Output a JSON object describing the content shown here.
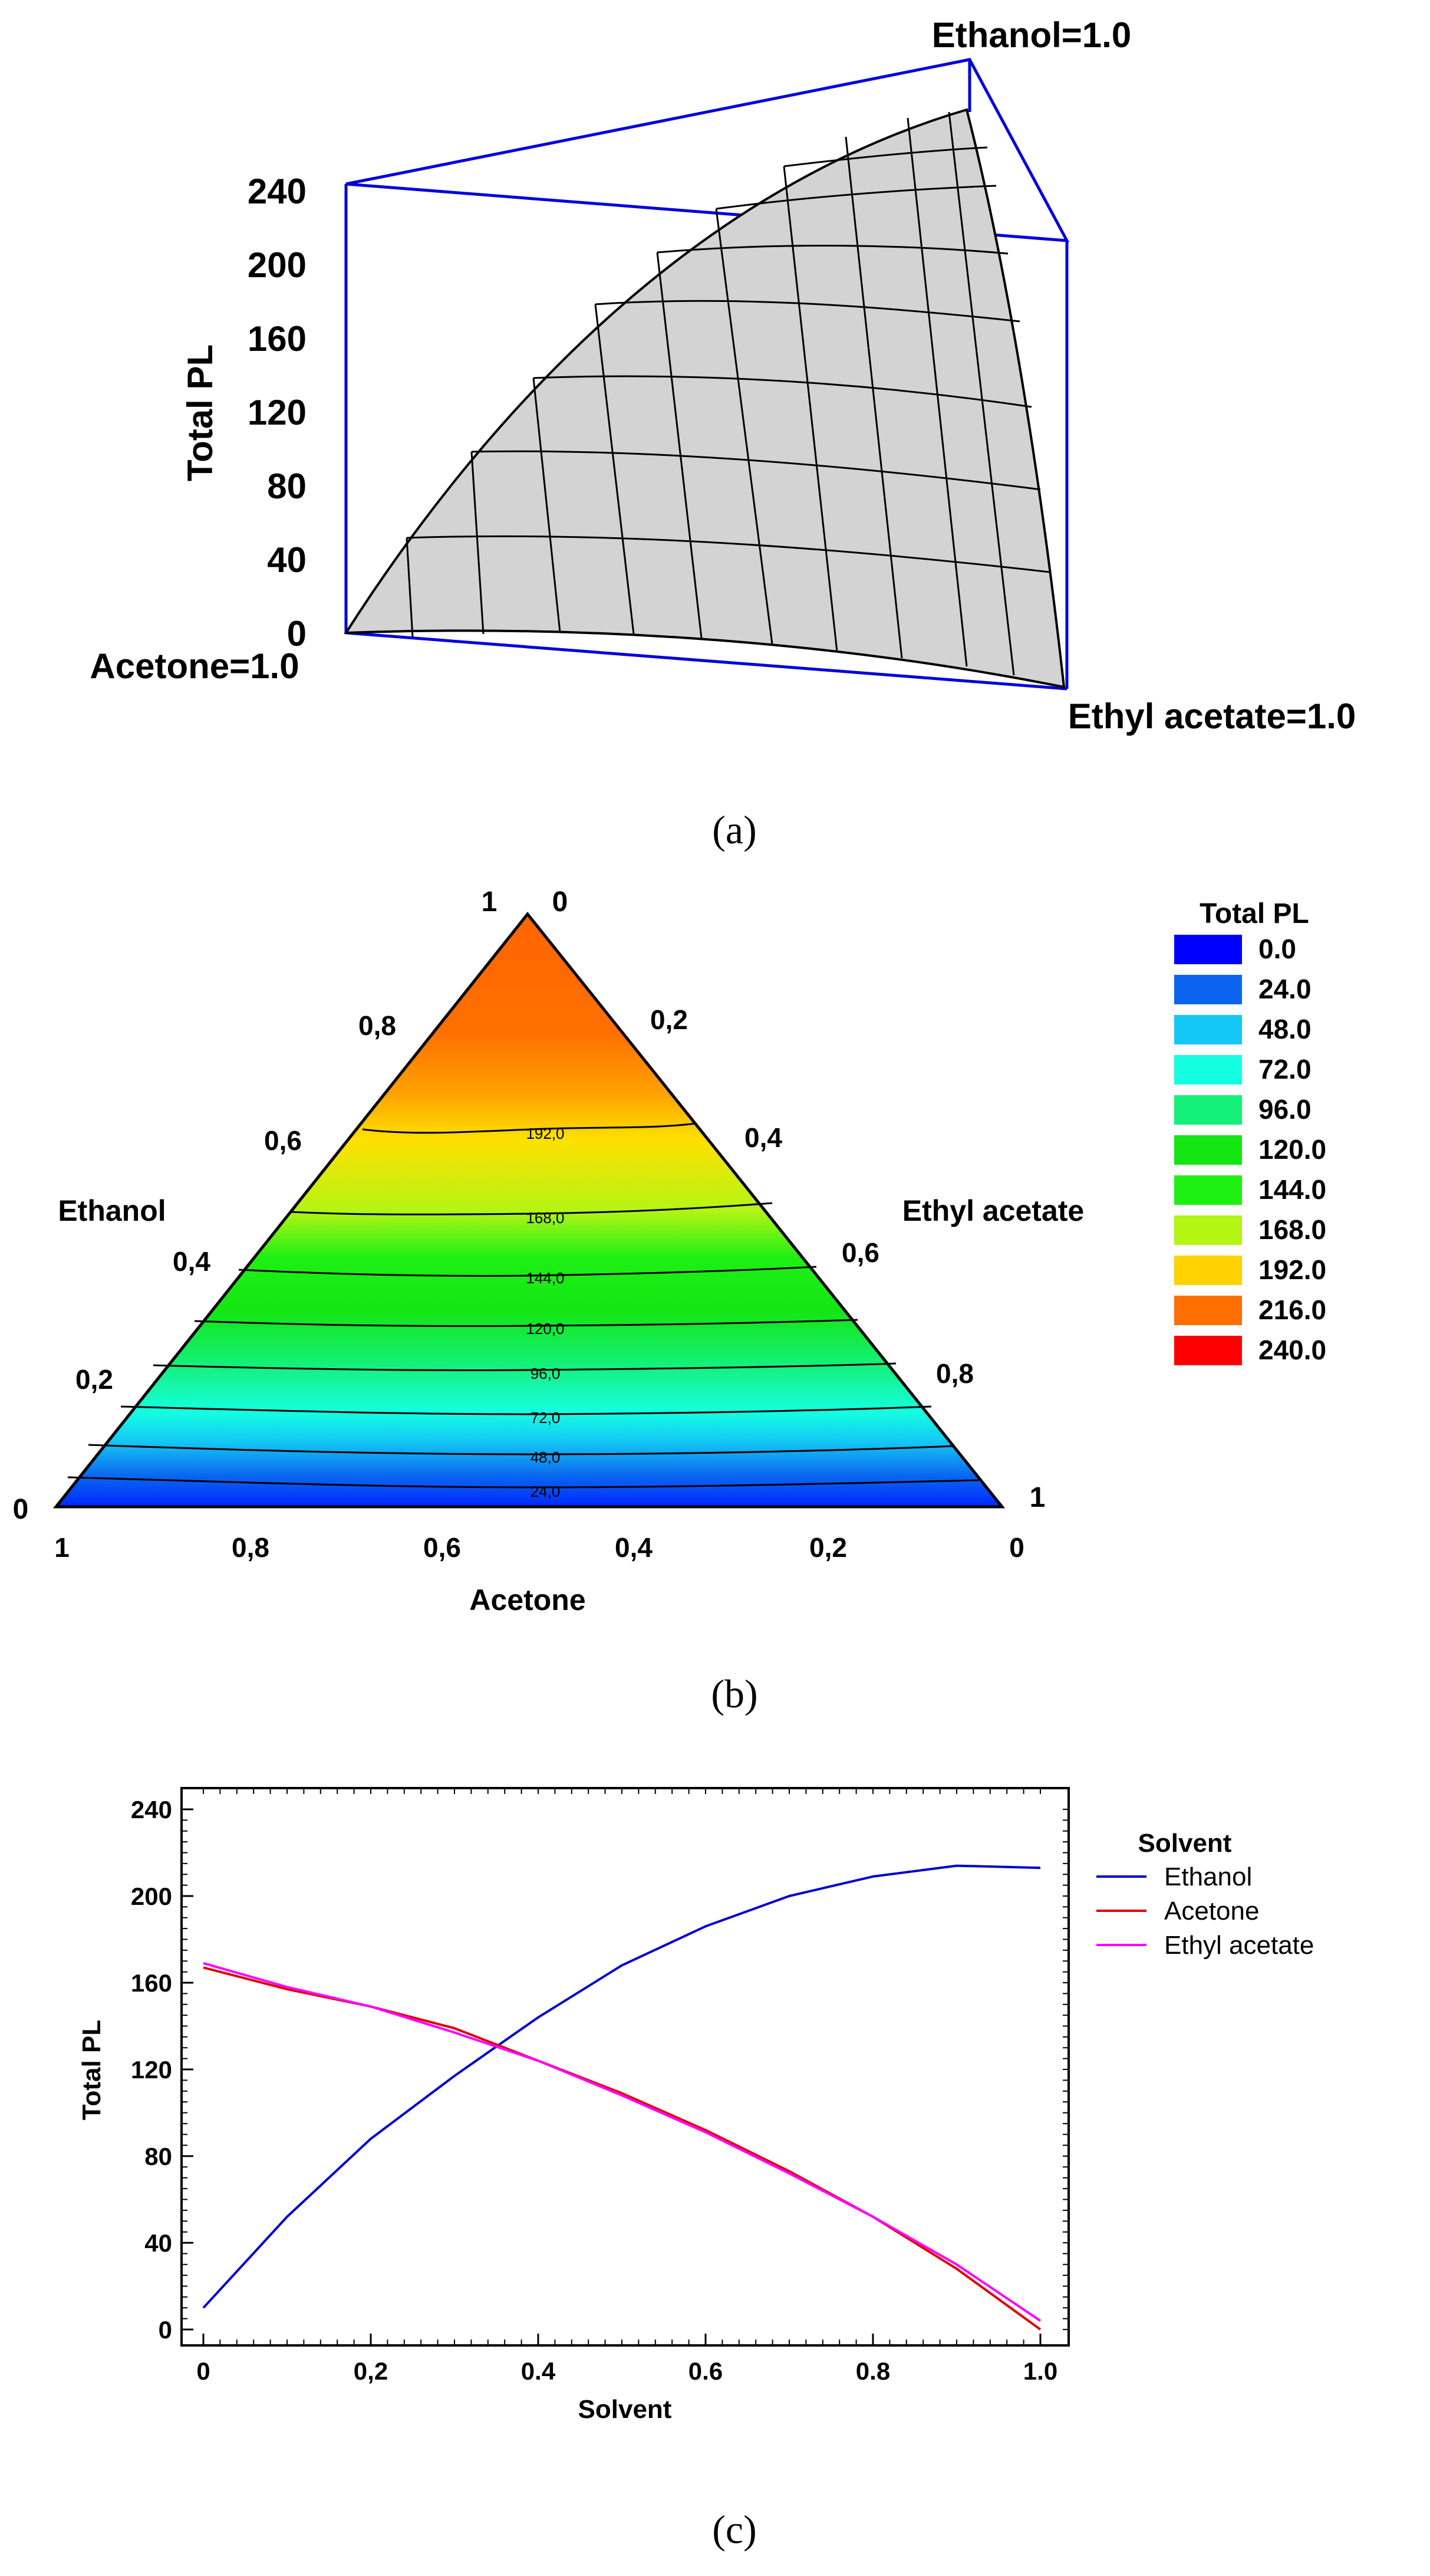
{
  "panels": {
    "a": {
      "caption": "(a)",
      "z_label": "Total PL",
      "z_ticks": [
        "240",
        "200",
        "160",
        "120",
        "80",
        "40",
        "0"
      ],
      "vertex_top": "Ethanol=1.0",
      "vertex_left": "Acetone=1.0",
      "vertex_right": "Ethyl acetate=1.0"
    },
    "b": {
      "caption": "(b)",
      "axis_bottom": "Acetone",
      "axis_left": "Ethanol",
      "axis_right": "Ethyl acetate",
      "apex_left": "1",
      "apex_right": "0",
      "corner_bottom_left": "0",
      "corner_bottom_right": "1",
      "left_ticks": [
        "0,8",
        "0,6",
        "0,4",
        "0,2"
      ],
      "right_ticks": [
        "0,2",
        "0,4",
        "0,6",
        "0,8"
      ],
      "bottom_ticks": [
        "1",
        "0,8",
        "0,6",
        "0,4",
        "0,2",
        "0"
      ],
      "contour_labels": [
        "192,0",
        "168,0",
        "144,0",
        "120,0",
        "96,0",
        "72,0",
        "48,0",
        "24,0"
      ],
      "legend_title": "Total PL",
      "legend": [
        {
          "label": "0.0",
          "color": "#0000ff"
        },
        {
          "label": "24.0",
          "color": "#0a64f0"
        },
        {
          "label": "48.0",
          "color": "#14c8f5"
        },
        {
          "label": "72.0",
          "color": "#14ffe1"
        },
        {
          "label": "96.0",
          "color": "#14f07a"
        },
        {
          "label": "120.0",
          "color": "#14e614"
        },
        {
          "label": "144.0",
          "color": "#1ef014"
        },
        {
          "label": "168.0",
          "color": "#b4f514"
        },
        {
          "label": "192.0",
          "color": "#ffd200"
        },
        {
          "label": "216.0",
          "color": "#ff6e00"
        },
        {
          "label": "240.0",
          "color": "#ff0000"
        }
      ]
    },
    "c": {
      "caption": "(c)"
    }
  },
  "chart_data": [
    {
      "type": "surface",
      "title": "",
      "zlabel": "Total PL",
      "zlim": [
        0,
        240
      ],
      "vertices": [
        "Ethanol=1.0",
        "Acetone=1.0",
        "Ethyl acetate=1.0"
      ],
      "surface_heights": {
        "Acetone=1.0": 0,
        "Ethyl acetate=1.0": 0,
        "Ethanol=1.0": 216
      }
    },
    {
      "type": "heatmap",
      "title": "",
      "legend_title": "Total PL",
      "components": [
        "Ethanol",
        "Acetone",
        "Ethyl acetate"
      ],
      "levels": [
        0,
        24,
        48,
        72,
        96,
        120,
        144,
        168,
        192,
        216,
        240
      ],
      "contours": [
        24,
        48,
        72,
        96,
        120,
        144,
        168,
        192
      ]
    },
    {
      "type": "line",
      "title": "",
      "xlabel": "Solvent",
      "ylabel": "Total PL",
      "xlim": [
        0,
        1
      ],
      "ylim": [
        0,
        240
      ],
      "x_ticks": [
        "0",
        "0,2",
        "0.4",
        "0.6",
        "0.8",
        "1.0"
      ],
      "y_ticks": [
        "0",
        "40",
        "80",
        "120",
        "160",
        "200",
        "240"
      ],
      "legend_title": "Solvent",
      "x": [
        0,
        0.1,
        0.2,
        0.3,
        0.4,
        0.5,
        0.6,
        0.7,
        0.8,
        0.9,
        1.0
      ],
      "series": [
        {
          "name": "Ethanol",
          "color": "#0000cc",
          "values": [
            10,
            52,
            88,
            117,
            144,
            168,
            186,
            200,
            209,
            214,
            213
          ]
        },
        {
          "name": "Acetone",
          "color": "#e00000",
          "values": [
            167,
            157,
            149,
            139,
            124,
            109,
            92,
            73,
            52,
            28,
            0
          ]
        },
        {
          "name": "Ethyl acetate",
          "color": "#ff00ff",
          "values": [
            169,
            158,
            149,
            137,
            124,
            108,
            91,
            72,
            52,
            30,
            4
          ]
        }
      ]
    }
  ]
}
